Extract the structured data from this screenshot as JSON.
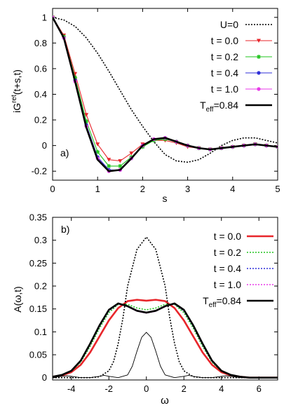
{
  "chart_data": [
    {
      "type": "line",
      "panel_label": "a)",
      "xlabel": "s",
      "ylabel": "iG",
      "ylabel_sup": "ret",
      "ylabel_args": "(t+s,t)",
      "xlim": [
        0,
        5
      ],
      "ylim": [
        -0.27,
        1.07
      ],
      "xticks": [
        0,
        1,
        2,
        3,
        4,
        5
      ],
      "yticks": [
        -0.2,
        0,
        0.2,
        0.4,
        0.6,
        0.8,
        1
      ],
      "grid": false,
      "legend_position": "top-right",
      "series": [
        {
          "name": "U=0",
          "color": "#000000",
          "style": "dotted",
          "x": [
            0,
            0.25,
            0.5,
            0.75,
            1.0,
            1.25,
            1.5,
            1.75,
            2.0,
            2.25,
            2.5,
            2.75,
            3.0,
            3.25,
            3.5,
            3.75,
            4.0,
            4.25,
            4.5,
            4.75,
            5.0
          ],
          "y": [
            1.0,
            0.98,
            0.93,
            0.84,
            0.72,
            0.58,
            0.43,
            0.28,
            0.15,
            0.03,
            -0.07,
            -0.12,
            -0.13,
            -0.11,
            -0.06,
            0.0,
            0.04,
            0.06,
            0.06,
            0.04,
            0.02
          ]
        },
        {
          "name": "t = 0.0",
          "color": "#e8262b",
          "style": "solid",
          "marker": "triangle-down",
          "x": [
            0,
            0.25,
            0.5,
            0.75,
            1.0,
            1.25,
            1.5,
            1.75,
            2.0,
            2.25,
            2.5,
            2.75,
            3.0,
            3.25,
            3.5,
            3.75,
            4.0,
            4.25,
            4.5,
            4.75,
            5.0
          ],
          "y": [
            1.0,
            0.86,
            0.56,
            0.24,
            0.01,
            -0.11,
            -0.12,
            -0.06,
            0.01,
            0.04,
            0.04,
            0.02,
            -0.01,
            -0.02,
            -0.03,
            -0.02,
            -0.01,
            0.0,
            0.01,
            0.0,
            -0.01
          ]
        },
        {
          "name": "t = 0.2",
          "color": "#22c41f",
          "style": "solid",
          "marker": "star",
          "x": [
            0,
            0.25,
            0.5,
            0.75,
            1.0,
            1.25,
            1.5,
            1.75,
            2.0,
            2.25,
            2.5,
            2.75,
            3.0,
            3.25,
            3.5,
            3.75,
            4.0,
            4.25,
            4.5,
            4.75,
            5.0
          ],
          "y": [
            1.0,
            0.85,
            0.53,
            0.19,
            -0.05,
            -0.16,
            -0.16,
            -0.09,
            -0.01,
            0.04,
            0.05,
            0.03,
            0.0,
            -0.02,
            -0.03,
            -0.02,
            -0.01,
            0.0,
            0.01,
            0.0,
            -0.01
          ]
        },
        {
          "name": "t = 0.4",
          "color": "#2f2fd8",
          "style": "solid",
          "marker": "circle",
          "x": [
            0,
            0.25,
            0.5,
            0.75,
            1.0,
            1.25,
            1.5,
            1.75,
            2.0,
            2.25,
            2.5,
            2.75,
            3.0,
            3.25,
            3.5,
            3.75,
            4.0,
            4.25,
            4.5,
            4.75,
            5.0
          ],
          "y": [
            1.0,
            0.84,
            0.51,
            0.16,
            -0.09,
            -0.19,
            -0.19,
            -0.1,
            0.0,
            0.05,
            0.06,
            0.03,
            0.0,
            -0.02,
            -0.03,
            -0.02,
            -0.01,
            0.0,
            0.01,
            0.0,
            -0.01
          ]
        },
        {
          "name": "t = 1.0",
          "color": "#e83ae8",
          "style": "solid",
          "marker": "circle",
          "x": [
            0,
            0.25,
            0.5,
            0.75,
            1.0,
            1.25,
            1.5,
            1.75,
            2.0,
            2.25,
            2.5,
            2.75,
            3.0,
            3.25,
            3.5,
            3.75,
            4.0,
            4.25,
            4.5,
            4.75,
            5.0
          ],
          "y": [
            1.0,
            0.84,
            0.5,
            0.15,
            -0.1,
            -0.2,
            -0.19,
            -0.1,
            0.0,
            0.05,
            0.06,
            0.03,
            0.0,
            -0.02,
            -0.03,
            -0.02,
            -0.01,
            0.0,
            0.01,
            0.0,
            -0.01
          ]
        },
        {
          "name": "T",
          "name_sub": "eff",
          "name_suffix": "=0.84",
          "color": "#000000",
          "style": "thick",
          "x": [
            0,
            0.25,
            0.5,
            0.75,
            1.0,
            1.25,
            1.5,
            1.75,
            2.0,
            2.25,
            2.5,
            2.75,
            3.0,
            3.25,
            3.5,
            3.75,
            4.0,
            4.25,
            4.5,
            4.75,
            5.0
          ],
          "y": [
            1.0,
            0.84,
            0.5,
            0.14,
            -0.11,
            -0.2,
            -0.19,
            -0.1,
            0.0,
            0.05,
            0.06,
            0.03,
            0.0,
            -0.02,
            -0.03,
            -0.02,
            -0.01,
            0.0,
            0.01,
            0.0,
            -0.01
          ]
        }
      ]
    },
    {
      "type": "line",
      "panel_label": "b)",
      "xlabel": "ω",
      "ylabel": "A(ω,t)",
      "xlim": [
        -5,
        7
      ],
      "ylim": [
        -0.005,
        0.35
      ],
      "xticks": [
        -4,
        -2,
        0,
        2,
        4,
        6
      ],
      "yticks": [
        0,
        0.05,
        0.1,
        0.15,
        0.2,
        0.25,
        0.3,
        0.35
      ],
      "grid": false,
      "legend_position": "top-right",
      "series": [
        {
          "name": "t = 0.0",
          "color": "#e8262b",
          "style": "thick",
          "x": [
            -5,
            -4.5,
            -4,
            -3.5,
            -3,
            -2.5,
            -2,
            -1.5,
            -1,
            -0.5,
            0,
            0.5,
            1,
            1.5,
            2,
            2.5,
            3,
            3.5,
            4,
            4.5,
            5,
            5.5,
            6,
            6.5,
            7
          ],
          "y": [
            0.002,
            0.005,
            0.012,
            0.028,
            0.055,
            0.09,
            0.125,
            0.152,
            0.167,
            0.17,
            0.168,
            0.17,
            0.167,
            0.152,
            0.125,
            0.09,
            0.055,
            0.028,
            0.012,
            0.005,
            0.002,
            0.0,
            0.0,
            0.0,
            0.0
          ]
        },
        {
          "name": "t = 0.2",
          "color": "#22c41f",
          "style": "dotted",
          "x": [
            -5,
            -4.5,
            -4,
            -3.5,
            -3,
            -2.5,
            -2,
            -1.5,
            -1,
            -0.5,
            0,
            0.5,
            1,
            1.5,
            2,
            2.5,
            3,
            3.5,
            4,
            4.5,
            5,
            5.5,
            6,
            6.5,
            7
          ],
          "y": [
            0.002,
            0.006,
            0.014,
            0.034,
            0.068,
            0.108,
            0.142,
            0.16,
            0.16,
            0.152,
            0.148,
            0.152,
            0.16,
            0.16,
            0.142,
            0.108,
            0.068,
            0.034,
            0.014,
            0.006,
            0.002,
            0.0,
            0.0,
            0.0,
            0.0
          ]
        },
        {
          "name": "t = 0.4",
          "color": "#2f2fd8",
          "style": "dotted",
          "x": [
            -5,
            -4.5,
            -4,
            -3.5,
            -3,
            -2.5,
            -2,
            -1.5,
            -1,
            -0.5,
            0,
            0.5,
            1,
            1.5,
            2,
            2.5,
            3,
            3.5,
            4,
            4.5,
            5,
            5.5,
            6,
            6.5,
            7
          ],
          "y": [
            0.002,
            0.006,
            0.015,
            0.036,
            0.072,
            0.112,
            0.146,
            0.161,
            0.156,
            0.146,
            0.142,
            0.146,
            0.156,
            0.161,
            0.146,
            0.112,
            0.072,
            0.036,
            0.015,
            0.006,
            0.002,
            0.0,
            0.0,
            0.0,
            0.0
          ]
        },
        {
          "name": "t = 1.0",
          "color": "#e83ae8",
          "style": "dotted",
          "x": [
            -5,
            -4.5,
            -4,
            -3.5,
            -3,
            -2.5,
            -2,
            -1.5,
            -1,
            -0.5,
            0,
            0.5,
            1,
            1.5,
            2,
            2.5,
            3,
            3.5,
            4,
            4.5,
            5,
            5.5,
            6,
            6.5,
            7
          ],
          "y": [
            0.002,
            0.006,
            0.015,
            0.037,
            0.073,
            0.113,
            0.147,
            0.162,
            0.155,
            0.145,
            0.141,
            0.145,
            0.155,
            0.162,
            0.147,
            0.113,
            0.073,
            0.037,
            0.015,
            0.006,
            0.002,
            0.0,
            0.0,
            0.0,
            0.0
          ]
        },
        {
          "name": "T",
          "name_sub": "eff",
          "name_suffix": "=0.84",
          "color": "#000000",
          "style": "thick",
          "x": [
            -5,
            -4.5,
            -4,
            -3.5,
            -3,
            -2.5,
            -2,
            -1.5,
            -1,
            -0.5,
            0,
            0.5,
            1,
            1.5,
            2,
            2.5,
            3,
            3.5,
            4,
            4.5,
            5,
            5.5,
            6,
            6.5,
            7
          ],
          "y": [
            0.002,
            0.006,
            0.015,
            0.037,
            0.074,
            0.114,
            0.148,
            0.162,
            0.156,
            0.146,
            0.142,
            0.146,
            0.156,
            0.162,
            0.148,
            0.114,
            0.074,
            0.037,
            0.015,
            0.006,
            0.002,
            0.0,
            0.0,
            0.0,
            0.0
          ]
        },
        {
          "name": "",
          "color": "#000000",
          "style": "dotted",
          "in_legend": false,
          "x": [
            -5,
            -4.5,
            -4,
            -3.5,
            -3,
            -2.5,
            -2,
            -1.75,
            -1.5,
            -1.25,
            -1,
            -0.5,
            0,
            0.5,
            1,
            1.25,
            1.5,
            1.75,
            2,
            2.5,
            3,
            3.5,
            4,
            4.5,
            5,
            6,
            7
          ],
          "y": [
            0.0,
            0.0,
            0.0,
            0.0,
            0.0,
            0.002,
            0.015,
            0.035,
            0.075,
            0.13,
            0.2,
            0.28,
            0.307,
            0.28,
            0.2,
            0.13,
            0.075,
            0.035,
            0.015,
            0.002,
            0.0,
            0.0,
            0.0,
            0.0,
            0.0,
            0.0,
            0.0
          ]
        },
        {
          "name": "",
          "color": "#000000",
          "style": "thin",
          "in_legend": false,
          "x": [
            -5,
            -4.5,
            -4.25,
            -4,
            -3.5,
            -3,
            -2.5,
            -2.25,
            -2,
            -1.5,
            -1,
            -0.75,
            -0.5,
            -0.25,
            0,
            0.25,
            0.5,
            0.75,
            1,
            1.5,
            2,
            2.25,
            2.5,
            3,
            3.5,
            4,
            4.25,
            4.5,
            5,
            6,
            7
          ],
          "y": [
            0.0,
            0.003,
            0.004,
            0.003,
            0.0,
            0.0,
            0.003,
            0.005,
            0.003,
            0.0,
            0.006,
            0.025,
            0.058,
            0.088,
            0.099,
            0.088,
            0.058,
            0.025,
            0.006,
            0.0,
            0.003,
            0.005,
            0.003,
            0.0,
            0.0,
            0.003,
            0.004,
            0.003,
            0.0,
            0.0,
            0.0
          ]
        }
      ]
    }
  ]
}
